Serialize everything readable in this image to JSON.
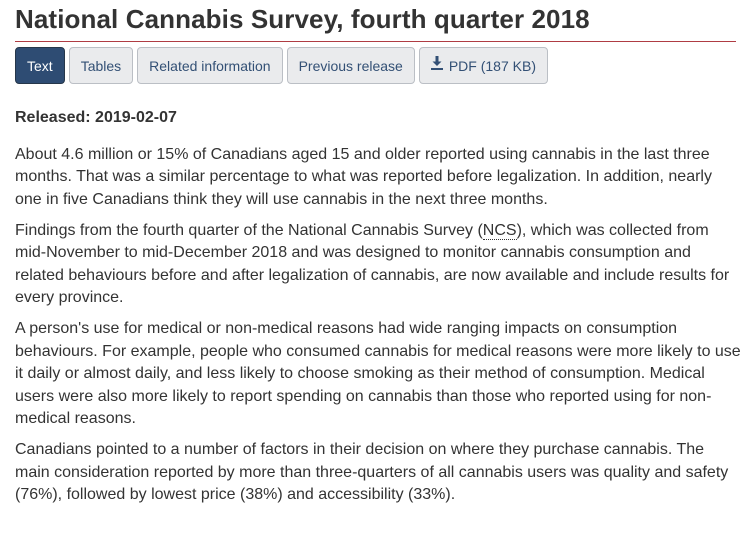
{
  "page": {
    "title": "National Cannabis Survey, fourth quarter 2018"
  },
  "tabs": [
    {
      "label": "Text",
      "active": true
    },
    {
      "label": "Tables",
      "active": false
    },
    {
      "label": "Related information",
      "active": false
    },
    {
      "label": "Previous release",
      "active": false
    },
    {
      "label": "PDF (187 KB)",
      "active": false,
      "icon": "download-icon"
    }
  ],
  "release": {
    "label": "Released:",
    "date": "2019-02-07"
  },
  "paragraphs": {
    "p1": "About 4.6 million or 15% of Canadians aged 15 and older reported using cannabis in the last three months. That was a similar percentage to what was reported before legalization. In addition, nearly one in five Canadians think they will use cannabis in the next three months.",
    "p2_before": "Findings from the fourth quarter of the National Cannabis Survey (",
    "p2_abbr": "NCS",
    "p2_after": "), which was collected from mid-November to mid-December 2018 and was designed to monitor cannabis consumption and related behaviours before and after legalization of cannabis, are now available and include results for every province.",
    "p3": "A person's use for medical or non-medical reasons had wide ranging impacts on consumption behaviours. For example, people who consumed cannabis for medical reasons were more likely to use it daily or almost daily, and less likely to choose smoking as their method of consumption. Medical users were also more likely to report spending on cannabis than those who reported using for non-medical reasons.",
    "p4": "Canadians pointed to a number of factors in their decision on where they purchase cannabis. The main consideration reported by more than three-quarters of all cannabis users was quality and safety (76%), followed by lowest price (38%) and accessibility (33%)."
  },
  "colors": {
    "title_rule": "#af3c43",
    "active_tab_bg": "#2e4c73",
    "tab_text": "#335075",
    "tab_bg": "#eaebed"
  }
}
